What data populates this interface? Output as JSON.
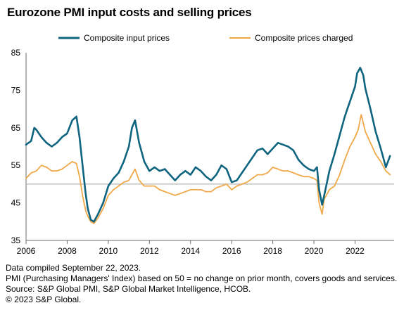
{
  "title": "Eurozone PMI input costs and selling prices",
  "footnotes": [
    "Data compiled September 22, 2023.",
    "PMI (Purchasing Managers' Index) based on 50 = no change on prior month, covers goods and services.",
    "Source: S&P Global PMI, S&P Global Market Intelligence, HCOB.",
    "© 2023 S&P Global."
  ],
  "chart_data": {
    "type": "line",
    "title": "Eurozone PMI input costs and selling prices",
    "xlabel": "",
    "ylabel": "",
    "xlim": [
      2006,
      2023.9
    ],
    "ylim": [
      35,
      85
    ],
    "y_ticks": [
      35,
      45,
      55,
      65,
      75,
      85
    ],
    "x_ticks": [
      2006,
      2008,
      2010,
      2012,
      2014,
      2016,
      2018,
      2020,
      2022
    ],
    "reference_line": 50,
    "grid": false,
    "legend_position": "top",
    "series": [
      {
        "name": "Composite input prices",
        "color": "#0f6580",
        "x": [
          2006.0,
          2006.25,
          2006.4,
          2006.5,
          2006.75,
          2007.0,
          2007.25,
          2007.5,
          2007.75,
          2008.0,
          2008.25,
          2008.45,
          2008.6,
          2008.75,
          2008.9,
          2009.0,
          2009.15,
          2009.3,
          2009.5,
          2009.75,
          2010.0,
          2010.25,
          2010.5,
          2010.75,
          2011.0,
          2011.15,
          2011.3,
          2011.5,
          2011.75,
          2012.0,
          2012.25,
          2012.5,
          2012.75,
          2013.0,
          2013.25,
          2013.5,
          2013.75,
          2014.0,
          2014.25,
          2014.5,
          2014.75,
          2015.0,
          2015.25,
          2015.5,
          2015.75,
          2016.0,
          2016.25,
          2016.5,
          2016.75,
          2017.0,
          2017.25,
          2017.5,
          2017.75,
          2018.0,
          2018.25,
          2018.5,
          2018.75,
          2019.0,
          2019.25,
          2019.5,
          2019.75,
          2020.0,
          2020.15,
          2020.25,
          2020.4,
          2020.5,
          2020.75,
          2021.0,
          2021.25,
          2021.5,
          2021.75,
          2022.0,
          2022.1,
          2022.25,
          2022.4,
          2022.5,
          2022.75,
          2023.0,
          2023.25,
          2023.5,
          2023.7
        ],
        "values": [
          60.5,
          61.5,
          65.0,
          64.5,
          62.5,
          61.0,
          60.0,
          61.0,
          62.5,
          63.5,
          67.0,
          68.0,
          62.5,
          55.0,
          47.5,
          43.5,
          40.5,
          40.0,
          42.0,
          45.0,
          49.5,
          51.5,
          53.0,
          56.0,
          60.0,
          65.0,
          67.0,
          61.0,
          56.0,
          53.5,
          54.5,
          53.5,
          54.0,
          52.5,
          51.0,
          52.5,
          53.5,
          52.5,
          54.5,
          53.5,
          52.0,
          51.0,
          52.5,
          55.0,
          54.0,
          50.5,
          51.0,
          53.0,
          55.0,
          57.0,
          59.0,
          59.5,
          58.0,
          59.5,
          61.0,
          60.5,
          60.0,
          59.0,
          56.5,
          55.0,
          54.0,
          53.5,
          54.5,
          48.5,
          44.5,
          47.0,
          53.5,
          58.0,
          63.0,
          68.0,
          72.0,
          76.0,
          79.5,
          81.0,
          79.0,
          75.5,
          70.0,
          64.0,
          59.5,
          54.5,
          57.5
        ]
      },
      {
        "name": "Composite prices charged",
        "color": "#f0a848",
        "x": [
          2006.0,
          2006.25,
          2006.5,
          2006.75,
          2007.0,
          2007.25,
          2007.5,
          2007.75,
          2008.0,
          2008.25,
          2008.45,
          2008.6,
          2008.75,
          2008.9,
          2009.0,
          2009.15,
          2009.3,
          2009.5,
          2009.75,
          2010.0,
          2010.25,
          2010.5,
          2010.75,
          2011.0,
          2011.15,
          2011.3,
          2011.5,
          2011.75,
          2012.0,
          2012.25,
          2012.5,
          2012.75,
          2013.0,
          2013.25,
          2013.5,
          2013.75,
          2014.0,
          2014.25,
          2014.5,
          2014.75,
          2015.0,
          2015.25,
          2015.5,
          2015.75,
          2016.0,
          2016.25,
          2016.5,
          2016.75,
          2017.0,
          2017.25,
          2017.5,
          2017.75,
          2018.0,
          2018.25,
          2018.5,
          2018.75,
          2019.0,
          2019.25,
          2019.5,
          2019.75,
          2020.0,
          2020.15,
          2020.25,
          2020.4,
          2020.5,
          2020.75,
          2021.0,
          2021.25,
          2021.5,
          2021.75,
          2022.0,
          2022.15,
          2022.3,
          2022.5,
          2022.75,
          2023.0,
          2023.25,
          2023.5,
          2023.7
        ],
        "values": [
          51.5,
          53.0,
          53.5,
          55.0,
          54.5,
          53.5,
          53.5,
          54.0,
          55.0,
          56.0,
          55.5,
          52.0,
          47.0,
          43.0,
          41.5,
          40.0,
          39.5,
          41.0,
          43.5,
          47.0,
          48.5,
          49.5,
          50.5,
          51.0,
          52.5,
          54.0,
          51.0,
          49.5,
          49.5,
          49.5,
          48.5,
          48.0,
          47.5,
          47.0,
          47.5,
          48.0,
          48.5,
          48.5,
          48.5,
          48.0,
          48.0,
          49.0,
          49.5,
          50.0,
          48.5,
          49.5,
          50.0,
          50.5,
          51.5,
          52.5,
          52.5,
          53.0,
          54.5,
          54.0,
          53.5,
          53.5,
          53.0,
          52.5,
          52.0,
          52.0,
          51.5,
          51.0,
          45.0,
          42.0,
          46.0,
          48.5,
          49.5,
          52.5,
          56.5,
          60.0,
          62.5,
          64.5,
          68.5,
          64.0,
          61.0,
          58.0,
          56.0,
          53.5,
          52.5
        ]
      }
    ]
  }
}
